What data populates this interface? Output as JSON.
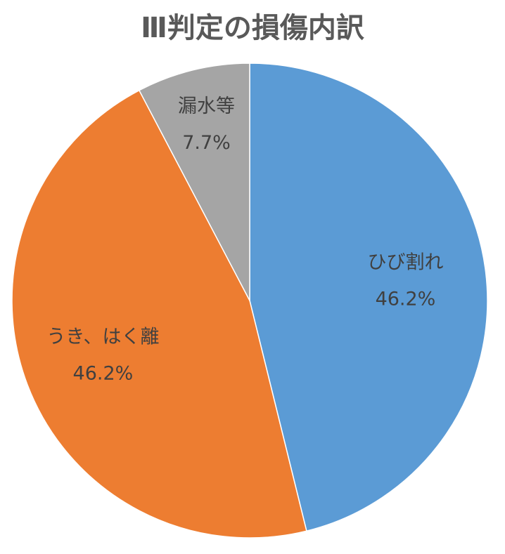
{
  "chart_data": {
    "type": "pie",
    "title": "Ⅲ判定の損傷内訳",
    "categories": [
      "ひび割れ",
      "うき、はく離",
      "漏水等"
    ],
    "values": [
      46.2,
      46.2,
      7.7
    ],
    "value_labels": [
      "46.2%",
      "46.2%",
      "7.7%"
    ],
    "colors": [
      "#5b9bd5",
      "#ed7d31",
      "#a5a5a5"
    ]
  }
}
